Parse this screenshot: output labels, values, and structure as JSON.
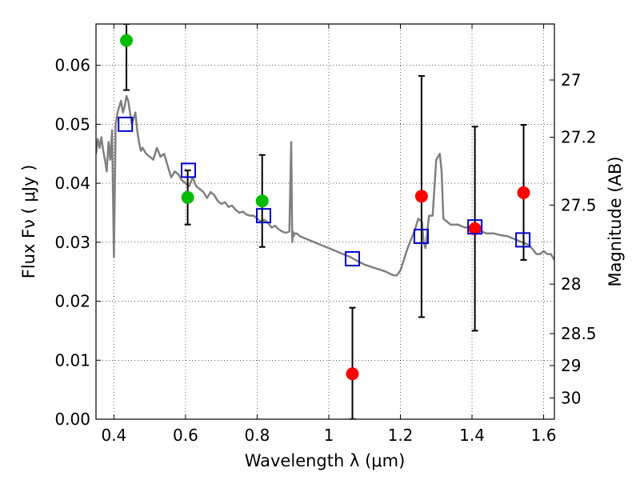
{
  "chart_data": {
    "type": "scatter",
    "xlabel": "Wavelength  λ (μm)",
    "ylabel": "Flux  Fν  ( μJy )",
    "y2label": "Magnitude (AB)",
    "xlim": [
      0.35,
      1.63
    ],
    "ylim": [
      0.0,
      0.067
    ],
    "grid": true,
    "x_ticks": [
      0.4,
      0.6,
      0.8,
      1.0,
      1.2,
      1.4,
      1.6
    ],
    "x_tick_labels": [
      "0.4",
      "0.6",
      "0.8",
      "1",
      "1.2",
      "1.4",
      "1.6"
    ],
    "y_ticks": [
      0.0,
      0.01,
      0.02,
      0.03,
      0.04,
      0.05,
      0.06
    ],
    "y_tick_labels": [
      "0.00",
      "0.01",
      "0.02",
      "0.03",
      "0.04",
      "0.05",
      "0.06"
    ],
    "y2_ticks": [
      {
        "flux": 0.0575,
        "label": "27"
      },
      {
        "flux": 0.0478,
        "label": "27.2"
      },
      {
        "flux": 0.0363,
        "label": "27.5"
      },
      {
        "flux": 0.0229,
        "label": "28"
      },
      {
        "flux": 0.0145,
        "label": "28.5"
      },
      {
        "flux": 0.0091,
        "label": "29"
      },
      {
        "flux": 0.0036,
        "label": "30"
      }
    ],
    "series": [
      {
        "marker": "circle",
        "color": "#00bb00",
        "points": [
          {
            "x": 0.435,
            "y": 0.0642,
            "yerr_lo": 0.0558,
            "yerr_hi": 0.067
          },
          {
            "x": 0.606,
            "y": 0.0376,
            "yerr_lo": 0.033,
            "yerr_hi": 0.0422
          },
          {
            "x": 0.814,
            "y": 0.037,
            "yerr_lo": 0.0292,
            "yerr_hi": 0.0448
          }
        ]
      },
      {
        "marker": "circle",
        "color": "#ff0000",
        "points": [
          {
            "x": 1.066,
            "y": 0.0077,
            "yerr_lo": 0.0,
            "yerr_hi": 0.0189
          },
          {
            "x": 1.259,
            "y": 0.0378,
            "yerr_lo": 0.0173,
            "yerr_hi": 0.0582
          },
          {
            "x": 1.408,
            "y": 0.0323,
            "yerr_lo": 0.015,
            "yerr_hi": 0.0496
          },
          {
            "x": 1.544,
            "y": 0.0384,
            "yerr_lo": 0.027,
            "yerr_hi": 0.0499
          }
        ]
      },
      {
        "marker": "square",
        "color": "#0000cc",
        "points": [
          {
            "x": 0.432,
            "y": 0.05
          },
          {
            "x": 0.608,
            "y": 0.0422
          },
          {
            "x": 0.818,
            "y": 0.0345
          },
          {
            "x": 1.066,
            "y": 0.0272
          },
          {
            "x": 1.258,
            "y": 0.031
          },
          {
            "x": 1.408,
            "y": 0.0326
          },
          {
            "x": 1.542,
            "y": 0.0304
          }
        ]
      },
      {
        "marker": "line",
        "color": "#808080",
        "x": [
          0.35,
          0.355,
          0.36,
          0.365,
          0.37,
          0.375,
          0.38,
          0.385,
          0.39,
          0.395,
          0.4,
          0.405,
          0.41,
          0.415,
          0.42,
          0.425,
          0.43,
          0.435,
          0.44,
          0.445,
          0.45,
          0.455,
          0.46,
          0.465,
          0.47,
          0.475,
          0.48,
          0.49,
          0.5,
          0.51,
          0.52,
          0.53,
          0.54,
          0.55,
          0.56,
          0.57,
          0.58,
          0.59,
          0.6,
          0.61,
          0.62,
          0.63,
          0.64,
          0.65,
          0.66,
          0.67,
          0.68,
          0.69,
          0.7,
          0.71,
          0.72,
          0.73,
          0.74,
          0.75,
          0.76,
          0.77,
          0.78,
          0.79,
          0.8,
          0.81,
          0.82,
          0.83,
          0.84,
          0.85,
          0.86,
          0.87,
          0.88,
          0.89,
          0.895,
          0.898,
          0.9,
          0.902,
          0.905,
          0.91,
          0.92,
          0.94,
          0.96,
          0.98,
          1.0,
          1.02,
          1.04,
          1.06,
          1.08,
          1.1,
          1.12,
          1.14,
          1.16,
          1.18,
          1.19,
          1.2,
          1.22,
          1.24,
          1.25,
          1.26,
          1.265,
          1.27,
          1.28,
          1.29,
          1.3,
          1.31,
          1.315,
          1.32,
          1.33,
          1.34,
          1.36,
          1.38,
          1.4,
          1.42,
          1.44,
          1.46,
          1.48,
          1.5,
          1.52,
          1.54,
          1.56,
          1.58,
          1.59,
          1.6,
          1.61,
          1.62,
          1.63
        ],
        "y": [
          0.045,
          0.0475,
          0.046,
          0.0478,
          0.0455,
          0.044,
          0.042,
          0.047,
          0.044,
          0.049,
          0.0275,
          0.05,
          0.052,
          0.053,
          0.054,
          0.052,
          0.053,
          0.0548,
          0.054,
          0.052,
          0.05,
          0.051,
          0.052,
          0.049,
          0.047,
          0.0455,
          0.046,
          0.045,
          0.0445,
          0.044,
          0.046,
          0.0445,
          0.045,
          0.043,
          0.041,
          0.042,
          0.0415,
          0.0405,
          0.04,
          0.0395,
          0.041,
          0.0395,
          0.039,
          0.0385,
          0.0375,
          0.0385,
          0.038,
          0.037,
          0.0365,
          0.0368,
          0.036,
          0.0362,
          0.0355,
          0.035,
          0.0352,
          0.0347,
          0.0345,
          0.0345,
          0.034,
          0.0335,
          0.0338,
          0.0333,
          0.0325,
          0.0328,
          0.0322,
          0.0318,
          0.0316,
          0.0318,
          0.047,
          0.03,
          0.0318,
          0.031,
          0.0315,
          0.0315,
          0.031,
          0.0305,
          0.03,
          0.0295,
          0.029,
          0.0285,
          0.028,
          0.0275,
          0.0268,
          0.0262,
          0.0258,
          0.0254,
          0.025,
          0.0244,
          0.0244,
          0.0252,
          0.029,
          0.032,
          0.034,
          0.0335,
          0.03,
          0.029,
          0.0345,
          0.0345,
          0.044,
          0.045,
          0.042,
          0.034,
          0.0335,
          0.033,
          0.033,
          0.0325,
          0.0325,
          0.032,
          0.0315,
          0.0315,
          0.0312,
          0.031,
          0.0305,
          0.03,
          0.0295,
          0.028,
          0.028,
          0.0285,
          0.028,
          0.028,
          0.027
        ]
      }
    ]
  }
}
